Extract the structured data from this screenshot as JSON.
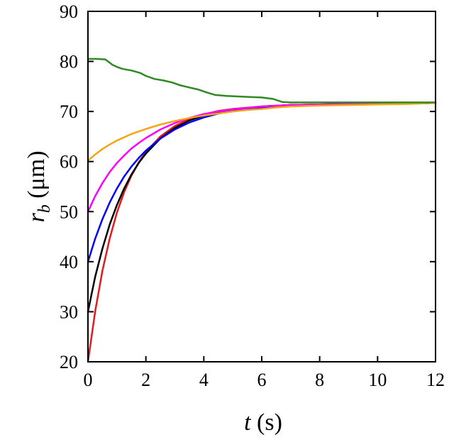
{
  "chart_data": {
    "type": "line",
    "xlabel_var": "t",
    "xlabel_unit": " (s)",
    "ylabel_var": "r",
    "ylabel_sub": "b",
    "ylabel_unit": " (μm)",
    "xlim": [
      0,
      12
    ],
    "ylim": [
      20,
      90
    ],
    "xticks": [
      0,
      2,
      4,
      6,
      8,
      10,
      12
    ],
    "yticks": [
      20,
      30,
      40,
      50,
      60,
      70,
      80,
      90
    ],
    "xtick_labels": [
      "0",
      "2",
      "4",
      "6",
      "8",
      "10",
      "12"
    ],
    "ytick_labels": [
      "20",
      "30",
      "40",
      "50",
      "60",
      "70",
      "80",
      "90"
    ],
    "grid": false,
    "series": [
      {
        "color": "#e31a1c",
        "x": [
          0,
          0.25,
          0.5,
          0.75,
          1,
          1.25,
          1.5,
          1.75,
          2,
          2.5,
          3,
          3.5,
          4,
          4.5,
          5,
          6,
          7,
          8,
          9,
          10,
          11,
          12
        ],
        "y": [
          20,
          30.1,
          38.2,
          44.6,
          49.8,
          53.9,
          57.2,
          59.8,
          61.9,
          65.0,
          67.1,
          68.5,
          69.4,
          70.1,
          70.5,
          71.0,
          71.3,
          71.4,
          71.5,
          71.6,
          71.6,
          71.7
        ]
      },
      {
        "color": "#000000",
        "x": [
          0,
          0.25,
          0.5,
          0.75,
          1,
          1.25,
          1.5,
          1.75,
          2,
          2.5,
          3,
          3.5,
          4,
          4.5,
          5,
          6,
          7,
          8,
          9,
          10,
          11,
          12
        ],
        "y": [
          30,
          37.0,
          42.6,
          47.4,
          51.3,
          54.6,
          57.4,
          59.7,
          61.6,
          64.6,
          66.7,
          68.2,
          69.2,
          69.9,
          70.4,
          71.0,
          71.3,
          71.4,
          71.5,
          71.6,
          71.6,
          71.7
        ]
      },
      {
        "color": "#0000ff",
        "x": [
          0,
          0.25,
          0.5,
          0.75,
          1,
          1.25,
          1.5,
          1.75,
          2,
          2.5,
          3,
          3.5,
          4,
          4.5,
          5,
          6,
          7,
          8,
          9,
          10,
          11,
          12
        ],
        "y": [
          40,
          44.6,
          48.5,
          51.8,
          54.6,
          57.0,
          59.0,
          60.7,
          62.2,
          64.6,
          66.4,
          67.8,
          68.8,
          69.6,
          70.1,
          70.8,
          71.2,
          71.4,
          71.5,
          71.6,
          71.6,
          71.7
        ]
      },
      {
        "color": "#ff00ff",
        "x": [
          0,
          0.25,
          0.5,
          0.75,
          1,
          1.25,
          1.5,
          1.75,
          2,
          2.5,
          3,
          3.5,
          4,
          4.5,
          5,
          6,
          7,
          8,
          9,
          10,
          11,
          12
        ],
        "y": [
          50,
          53.1,
          55.7,
          57.9,
          59.7,
          61.2,
          62.6,
          63.7,
          64.7,
          66.4,
          67.7,
          68.7,
          69.5,
          70.0,
          70.4,
          71.0,
          71.3,
          71.4,
          71.5,
          71.6,
          71.6,
          71.7
        ]
      },
      {
        "color": "#f4a612",
        "x": [
          0,
          0.25,
          0.5,
          0.75,
          1,
          1.5,
          2,
          2.5,
          3,
          3.5,
          4,
          4.5,
          5,
          5.5,
          6,
          6.5,
          7,
          8,
          9,
          10,
          11,
          12
        ],
        "y": [
          60.2,
          61.4,
          62.5,
          63.4,
          64.2,
          65.5,
          66.5,
          67.4,
          68.1,
          68.7,
          69.2,
          69.6,
          70.0,
          70.3,
          70.5,
          70.8,
          71.0,
          71.2,
          71.3,
          71.4,
          71.5,
          71.7
        ]
      },
      {
        "color": "#2e8b22",
        "x": [
          0,
          0.3,
          0.6,
          0.85,
          1.0,
          1.2,
          1.5,
          1.8,
          2.0,
          2.3,
          2.6,
          2.9,
          3.2,
          3.5,
          3.8,
          4.1,
          4.4,
          4.8,
          5.2,
          5.6,
          6.0,
          6.4,
          6.7,
          7.0,
          7.5,
          8.0,
          9.0,
          10.0,
          11.0,
          12.0
        ],
        "y": [
          80.5,
          80.5,
          80.4,
          79.3,
          78.9,
          78.5,
          78.2,
          77.7,
          77.1,
          76.5,
          76.2,
          75.8,
          75.2,
          74.8,
          74.4,
          73.8,
          73.3,
          73.1,
          73.0,
          72.9,
          72.8,
          72.5,
          71.9,
          71.8,
          71.8,
          71.8,
          71.8,
          71.8,
          71.8,
          71.8
        ]
      }
    ]
  }
}
